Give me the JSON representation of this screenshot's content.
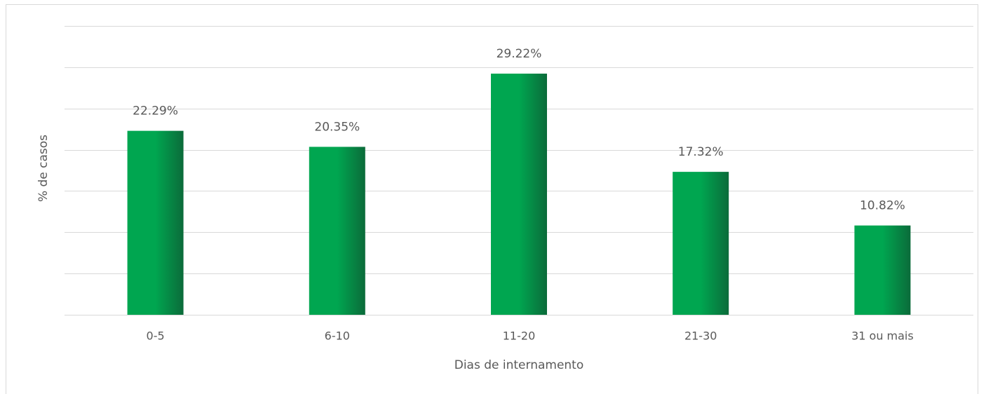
{
  "chart_data": {
    "type": "bar",
    "x_label": "Dias de internamento",
    "y_label": "% de casos",
    "categories": [
      "0-5",
      "6-10",
      "11-20",
      "21-30",
      "31 ou mais"
    ],
    "values": [
      22.29,
      20.35,
      29.22,
      17.32,
      10.82
    ],
    "value_labels": [
      "22.29%",
      "20.35%",
      "29.22%",
      "17.32%",
      "10.82%"
    ],
    "color": "#00a650",
    "ylim": [
      0,
      35
    ],
    "yticks": [
      0,
      5,
      10,
      15,
      20,
      25,
      30,
      35
    ],
    "grid": true
  }
}
